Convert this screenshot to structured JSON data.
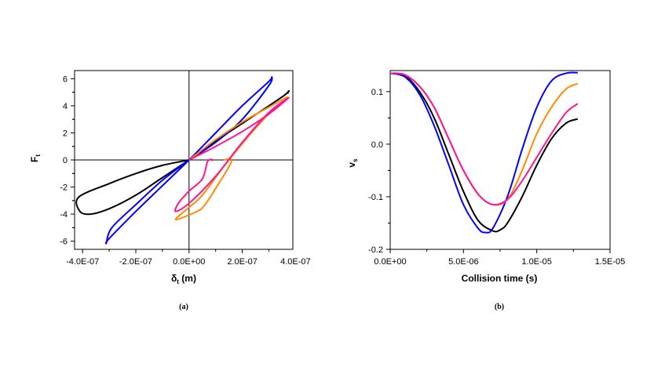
{
  "chart_data": [
    {
      "id": "a",
      "type": "line",
      "panel_label": "(a)",
      "ylabel": "F",
      "ylabel_sub": "t",
      "xlabel": "δ",
      "xlabel_sub": "t",
      "xlabel_unit": " (m)",
      "xlim": [
        -4.3e-07,
        3.9e-07
      ],
      "ylim": [
        -6.6,
        6.6
      ],
      "xticks": [
        -4e-07,
        -2e-07,
        0,
        2e-07,
        4e-07
      ],
      "xtick_labels": [
        "-4.0E-07",
        "-2.0E-07",
        "0.0E+00",
        "2.0E-07",
        "4.0E-07"
      ],
      "yticks": [
        -6,
        -4,
        -2,
        0,
        2,
        4,
        6
      ],
      "ytick_labels": [
        "-6",
        "-4",
        "-2",
        "0",
        "2",
        "4",
        "6"
      ],
      "series": [
        {
          "name": "black",
          "color": "#000000",
          "x": [
            0,
            -1e-07,
            -2e-07,
            -3e-07,
            -4.15e-07,
            -4.1e-07,
            -3.7e-07,
            -3e-07,
            -2e-07,
            -1e-07,
            0,
            1e-07,
            2e-07,
            3e-07,
            3.6e-07,
            3.75e-07,
            3.7e-07
          ],
          "y": [
            0,
            -0.4,
            -1,
            -1.75,
            -2.75,
            -3.8,
            -4,
            -3.6,
            -2.6,
            -1.3,
            0,
            1.4,
            2.7,
            4,
            4.8,
            5.1,
            4.9
          ]
        },
        {
          "name": "blue",
          "color": "#0000ff",
          "x": [
            0,
            -1e-07,
            -2e-07,
            -2.9e-07,
            -3.1e-07,
            -3e-07,
            -2e-07,
            -1e-07,
            0,
            1e-07,
            2e-07,
            3e-07,
            3.1e-07,
            3e-07,
            2e-07,
            1e-07,
            0
          ],
          "y": [
            0,
            -1.5,
            -3.3,
            -5,
            -6.1,
            -5.8,
            -3.8,
            -1.9,
            0,
            2,
            4,
            5.8,
            6.1,
            5.5,
            3,
            1.3,
            0
          ]
        },
        {
          "name": "orange",
          "color": "#ff8c00",
          "x": [
            0,
            1e-07,
            2e-07,
            3e-07,
            3.7e-07,
            2.8e-07,
            1.5e-07,
            5e-08,
            0,
            -5e-08,
            3e-08,
            6e-08,
            1e-07,
            1.6e-07,
            1.3e-07
          ],
          "y": [
            0,
            1.5,
            2.8,
            3.9,
            4.6,
            3,
            0,
            -2.6,
            -3.5,
            -4.4,
            -3.8,
            -3.3,
            -2.1,
            -0.1,
            0
          ]
        },
        {
          "name": "magenta",
          "color": "#ff1493",
          "x": [
            0,
            1e-07,
            2e-07,
            3e-07,
            3.75e-07,
            3e-07,
            2e-07,
            1e-07,
            0,
            -5e-08,
            -4e-08,
            0,
            5e-08,
            7e-08,
            9e-08,
            8e-08
          ],
          "y": [
            0,
            1,
            2.1,
            3.4,
            4.6,
            3.5,
            1.3,
            -1.2,
            -3.2,
            -3.8,
            -3.2,
            -2.3,
            -1.4,
            -0.1,
            0,
            0
          ]
        }
      ]
    },
    {
      "id": "b",
      "type": "line",
      "panel_label": "(b)",
      "ylabel": "v",
      "ylabel_sub": "s",
      "xlabel": "Collision time (s)",
      "xlim": [
        0,
        1.5e-05
      ],
      "ylim": [
        -0.2,
        0.14
      ],
      "xticks": [
        0,
        5e-06,
        1e-05,
        1.5e-05
      ],
      "xtick_labels": [
        "0.0E+00",
        "5.0E-06",
        "1.0E-05",
        "1.5E-05"
      ],
      "yticks": [
        -0.2,
        -0.1,
        0,
        0.1
      ],
      "ytick_labels": [
        "-0.2",
        "-0.1",
        "0.0",
        "0.1"
      ],
      "series": [
        {
          "name": "black",
          "color": "#000000",
          "x": [
            0,
            1e-06,
            2e-06,
            3e-06,
            4e-06,
            5e-06,
            6e-06,
            7e-06,
            7.5e-06,
            8e-06,
            9e-06,
            1e-05,
            1.1e-05,
            1.2e-05,
            1.28e-05
          ],
          "y": [
            0.135,
            0.13,
            0.1,
            0.05,
            -0.02,
            -0.09,
            -0.145,
            -0.165,
            -0.163,
            -0.15,
            -0.1,
            -0.04,
            0.01,
            0.04,
            0.048
          ]
        },
        {
          "name": "blue",
          "color": "#0000ff",
          "x": [
            0,
            1e-06,
            2e-06,
            3e-06,
            4e-06,
            5e-06,
            6e-06,
            6.5e-06,
            7e-06,
            8e-06,
            9e-06,
            1e-05,
            1.1e-05,
            1.2e-05,
            1.28e-05
          ],
          "y": [
            0.135,
            0.128,
            0.095,
            0.035,
            -0.04,
            -0.115,
            -0.16,
            -0.168,
            -0.16,
            -0.1,
            -0.01,
            0.07,
            0.12,
            0.135,
            0.136
          ]
        },
        {
          "name": "orange",
          "color": "#ff8c00",
          "x": [
            0,
            1e-06,
            2e-06,
            3e-06,
            4e-06,
            5e-06,
            6e-06,
            7e-06,
            8e-06,
            9e-06,
            1e-05,
            1.1e-05,
            1.2e-05,
            1.28e-05
          ],
          "y": [
            0.135,
            0.132,
            0.11,
            0.07,
            0.01,
            -0.05,
            -0.095,
            -0.115,
            -0.105,
            -0.05,
            0.02,
            0.07,
            0.105,
            0.115
          ]
        },
        {
          "name": "magenta",
          "color": "#ff1493",
          "x": [
            0,
            1e-06,
            2e-06,
            3e-06,
            4e-06,
            5e-06,
            6e-06,
            7e-06,
            8e-06,
            9e-06,
            1e-05,
            1.1e-05,
            1.2e-05,
            1.28e-05
          ],
          "y": [
            0.135,
            0.132,
            0.11,
            0.07,
            0.01,
            -0.05,
            -0.095,
            -0.115,
            -0.105,
            -0.07,
            -0.025,
            0.02,
            0.06,
            0.077
          ]
        }
      ]
    }
  ]
}
